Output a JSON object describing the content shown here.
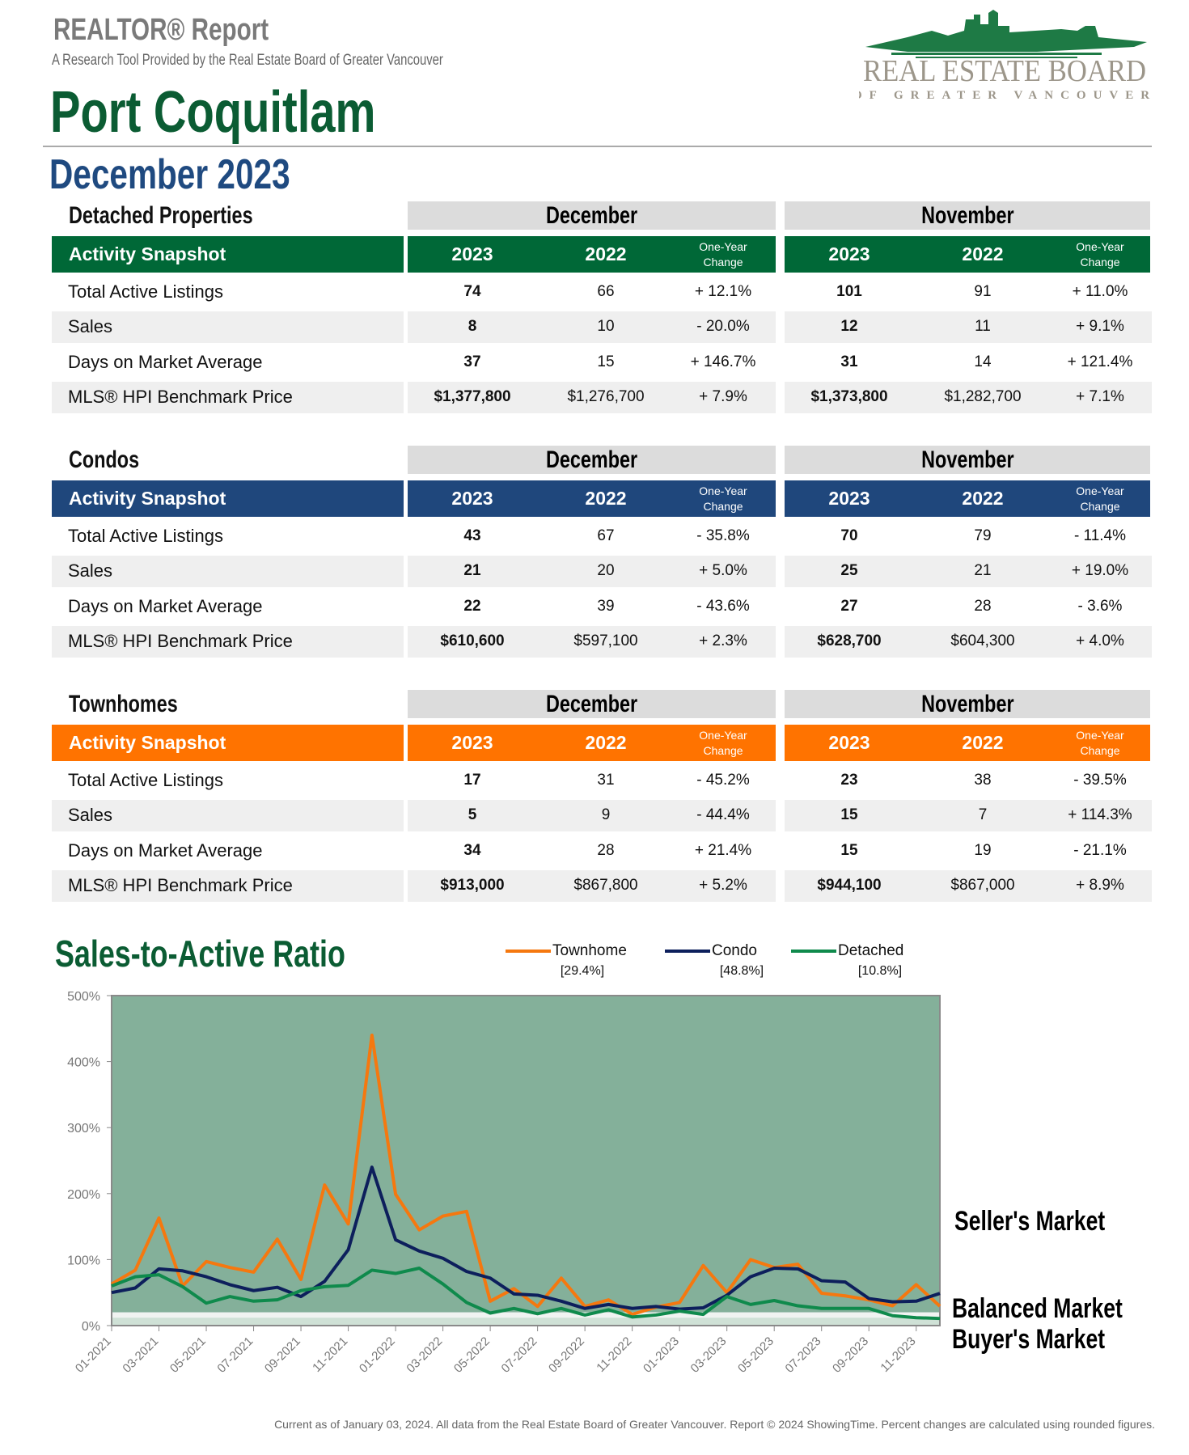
{
  "header": {
    "report_title": "REALTOR® Report",
    "subtitle": "A Research Tool Provided by the Real Estate Board of Greater Vancouver",
    "area": "Port Coquitlam",
    "period": "December 2023",
    "logo_text": "REAL ESTATE BOARD OF GREATER VANCOUVER"
  },
  "colors": {
    "detached": "#006837",
    "condos": "#1f477c",
    "townhomes": "#ff7300"
  },
  "table_columns": {
    "current_month": "December",
    "previous_month": "November",
    "snapshot_label": "Activity Snapshot",
    "year_current": "2023",
    "year_previous": "2022",
    "change_line1": "One-Year",
    "change_line2": "Change"
  },
  "sections": [
    {
      "title": "Detached Properties",
      "color_key": "detached",
      "rows": [
        {
          "label": "Total Active Listings",
          "dec": [
            "74",
            "66",
            "+ 12.1%"
          ],
          "nov": [
            "101",
            "91",
            "+ 11.0%"
          ]
        },
        {
          "label": "Sales",
          "dec": [
            "8",
            "10",
            "- 20.0%"
          ],
          "nov": [
            "12",
            "11",
            "+ 9.1%"
          ]
        },
        {
          "label": "Days on Market Average",
          "dec": [
            "37",
            "15",
            "+ 146.7%"
          ],
          "nov": [
            "31",
            "14",
            "+ 121.4%"
          ]
        },
        {
          "label": "MLS® HPI Benchmark Price",
          "dec": [
            "$1,377,800",
            "$1,276,700",
            "+ 7.9%"
          ],
          "nov": [
            "$1,373,800",
            "$1,282,700",
            "+ 7.1%"
          ]
        }
      ]
    },
    {
      "title": "Condos",
      "color_key": "condos",
      "rows": [
        {
          "label": "Total Active Listings",
          "dec": [
            "43",
            "67",
            "- 35.8%"
          ],
          "nov": [
            "70",
            "79",
            "- 11.4%"
          ]
        },
        {
          "label": "Sales",
          "dec": [
            "21",
            "20",
            "+ 5.0%"
          ],
          "nov": [
            "25",
            "21",
            "+ 19.0%"
          ]
        },
        {
          "label": "Days on Market Average",
          "dec": [
            "22",
            "39",
            "- 43.6%"
          ],
          "nov": [
            "27",
            "28",
            "- 3.6%"
          ]
        },
        {
          "label": "MLS® HPI Benchmark Price",
          "dec": [
            "$610,600",
            "$597,100",
            "+ 2.3%"
          ],
          "nov": [
            "$628,700",
            "$604,300",
            "+ 4.0%"
          ]
        }
      ]
    },
    {
      "title": "Townhomes",
      "color_key": "townhomes",
      "rows": [
        {
          "label": "Total Active Listings",
          "dec": [
            "17",
            "31",
            "- 45.2%"
          ],
          "nov": [
            "23",
            "38",
            "- 39.5%"
          ]
        },
        {
          "label": "Sales",
          "dec": [
            "5",
            "9",
            "- 44.4%"
          ],
          "nov": [
            "15",
            "7",
            "+ 114.3%"
          ]
        },
        {
          "label": "Days on Market Average",
          "dec": [
            "34",
            "28",
            "+ 21.4%"
          ],
          "nov": [
            "15",
            "19",
            "- 21.1%"
          ]
        },
        {
          "label": "MLS® HPI Benchmark Price",
          "dec": [
            "$913,000",
            "$867,800",
            "+ 5.2%"
          ],
          "nov": [
            "$944,100",
            "$867,000",
            "+ 8.9%"
          ]
        }
      ]
    }
  ],
  "chart_data": {
    "type": "line",
    "title": "Sales-to-Active Ratio",
    "ylim": [
      0,
      500
    ],
    "yticks": [
      "0%",
      "100%",
      "200%",
      "300%",
      "400%",
      "500%"
    ],
    "x": [
      "01-2021",
      "02-2021",
      "03-2021",
      "04-2021",
      "05-2021",
      "06-2021",
      "07-2021",
      "08-2021",
      "09-2021",
      "10-2021",
      "11-2021",
      "12-2021",
      "01-2022",
      "02-2022",
      "03-2022",
      "04-2022",
      "05-2022",
      "06-2022",
      "07-2022",
      "08-2022",
      "09-2022",
      "10-2022",
      "11-2022",
      "12-2022",
      "01-2023",
      "02-2023",
      "03-2023",
      "04-2023",
      "05-2023",
      "06-2023",
      "07-2023",
      "08-2023",
      "09-2023",
      "10-2023",
      "11-2023",
      "12-2023"
    ],
    "xtick_labels": [
      "01-2021",
      "03-2021",
      "05-2021",
      "07-2021",
      "09-2021",
      "11-2021",
      "01-2022",
      "03-2022",
      "05-2022",
      "07-2022",
      "09-2022",
      "11-2022",
      "01-2023",
      "03-2023",
      "05-2023",
      "07-2023",
      "09-2023",
      "11-2023"
    ],
    "bands": [
      {
        "label": "Seller's Market",
        "from": 20,
        "to": 500,
        "color": "#84b09a"
      },
      {
        "label": "Balanced Market",
        "from": 12,
        "to": 20,
        "color": "#f0f3f1"
      },
      {
        "label": "Buyer's Market",
        "from": 0,
        "to": 12,
        "color": "#cfe1d6"
      }
    ],
    "legend_position": "top",
    "series": [
      {
        "name": "Townhome",
        "current": "[29.4%]",
        "color": "#f5780f",
        "values": [
          63,
          84,
          163,
          60,
          97,
          88,
          81,
          131,
          70,
          213,
          154,
          440,
          199,
          145,
          166,
          173,
          37,
          56,
          29,
          72,
          29,
          39,
          17,
          28,
          35,
          91,
          50,
          100,
          88,
          93,
          49,
          45,
          39,
          30,
          62,
          29.4
        ]
      },
      {
        "name": "Condo",
        "current": "[48.8%]",
        "color": "#0d1f5c",
        "values": [
          50,
          57,
          86,
          83,
          74,
          62,
          53,
          58,
          44,
          67,
          115,
          240,
          130,
          113,
          102,
          82,
          72,
          48,
          46,
          37,
          26,
          32,
          26,
          29,
          25,
          27,
          46,
          74,
          87,
          86,
          68,
          66,
          41,
          36,
          37,
          48.8
        ]
      },
      {
        "name": "Detached",
        "current": "[10.8%]",
        "color": "#0f8a4c",
        "values": [
          60,
          74,
          77,
          59,
          34,
          44,
          37,
          39,
          53,
          59,
          61,
          84,
          79,
          87,
          63,
          35,
          19,
          26,
          18,
          26,
          16,
          24,
          13,
          16,
          22,
          17,
          44,
          32,
          38,
          30,
          26,
          26,
          26,
          15,
          12,
          10.8
        ]
      }
    ]
  },
  "footer": "Current as of January 03, 2024. All data from the Real Estate Board of Greater Vancouver. Report © 2024 ShowingTime. Percent changes are calculated using rounded figures."
}
